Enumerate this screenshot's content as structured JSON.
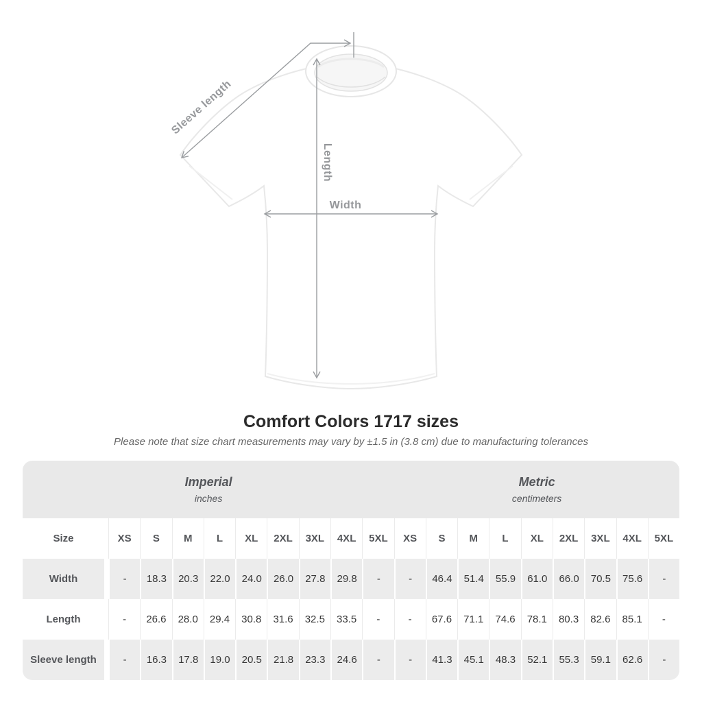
{
  "diagram": {
    "sleeve_length_label": "Sleeve length",
    "length_label": "Length",
    "width_label": "Width"
  },
  "title": "Comfort Colors 1717 sizes",
  "note": "Please note that size chart measurements may vary by ±1.5 in (3.8 cm) due to manufacturing tolerances",
  "table": {
    "unit_groups": [
      {
        "label": "Imperial",
        "sublabel": "inches"
      },
      {
        "label": "Metric",
        "sublabel": "centimeters"
      }
    ],
    "size_header": "Size",
    "sizes": [
      "XS",
      "S",
      "M",
      "L",
      "XL",
      "2XL",
      "3XL",
      "4XL",
      "5XL"
    ],
    "rows": [
      {
        "label": "Width",
        "imperial": [
          "-",
          "18.3",
          "20.3",
          "22.0",
          "24.0",
          "26.0",
          "27.8",
          "29.8",
          "-"
        ],
        "metric": [
          "-",
          "46.4",
          "51.4",
          "55.9",
          "61.0",
          "66.0",
          "70.5",
          "75.6",
          "-"
        ]
      },
      {
        "label": "Length",
        "imperial": [
          "-",
          "26.6",
          "28.0",
          "29.4",
          "30.8",
          "31.6",
          "32.5",
          "33.5",
          "-"
        ],
        "metric": [
          "-",
          "67.6",
          "71.1",
          "74.6",
          "78.1",
          "80.3",
          "82.6",
          "85.1",
          "-"
        ]
      },
      {
        "label": "Sleeve length",
        "imperial": [
          "-",
          "16.3",
          "17.8",
          "19.0",
          "20.5",
          "21.8",
          "23.3",
          "24.6",
          "-"
        ],
        "metric": [
          "-",
          "41.3",
          "45.1",
          "48.3",
          "52.1",
          "55.3",
          "59.1",
          "62.6",
          "-"
        ]
      }
    ]
  },
  "colors": {
    "title_text": "#2b2b2b",
    "note_text": "#666666",
    "measure": "#9a9da0",
    "measure_label": "#96989b",
    "band_bg": "#e9e9e9",
    "row_alt_bg": "#ececec",
    "header_text": "#54565a",
    "value_text": "#383838",
    "shirt_outline": "#e8e8e8"
  }
}
